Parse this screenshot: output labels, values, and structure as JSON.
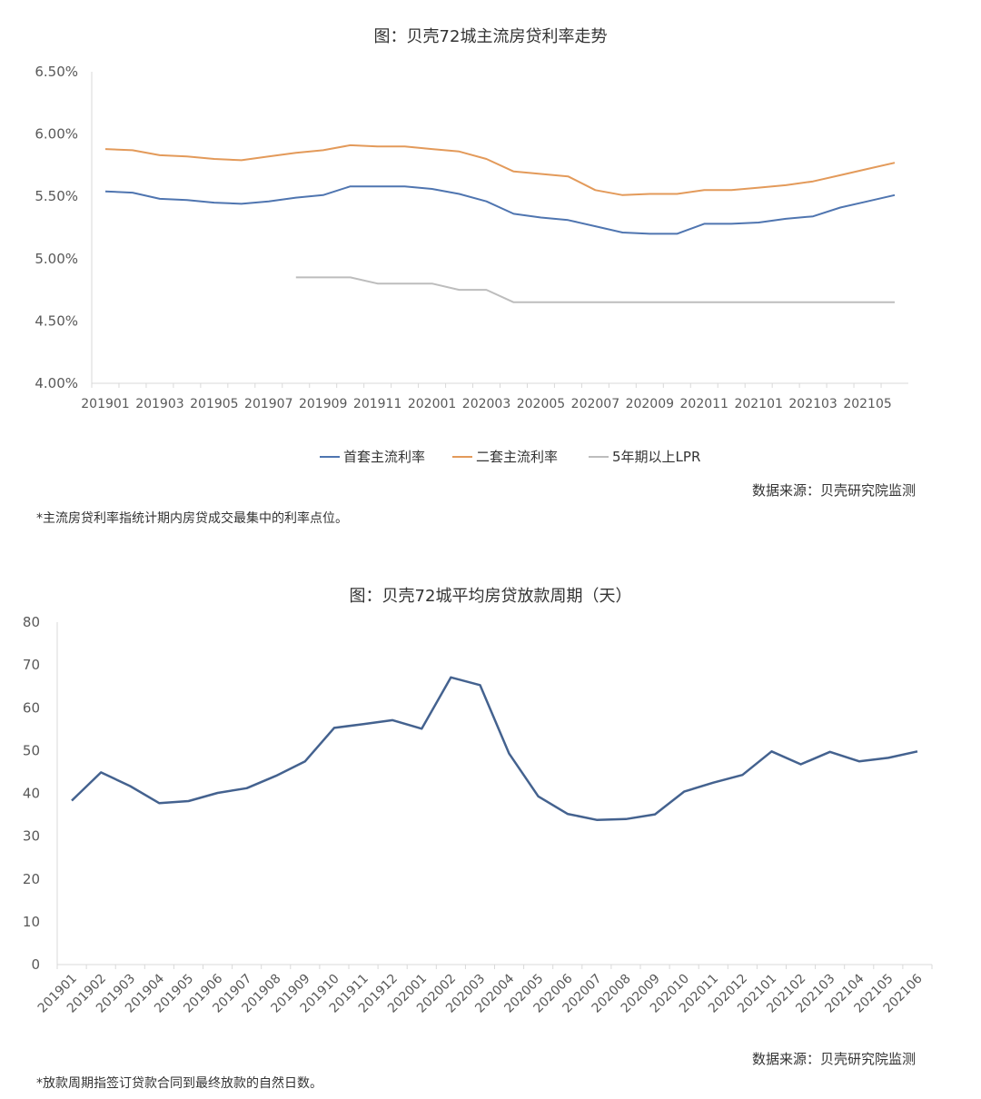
{
  "colors": {
    "first_home": "#4f75b0",
    "second_home": "#e39a5a",
    "lpr": "#bdbdbd",
    "cycle": "#44628f",
    "axis": "#d9d9d9"
  },
  "chart_data": [
    {
      "type": "line",
      "title": "图：贝壳72城主流房贷利率走势",
      "x": [
        "201901",
        "201902",
        "201903",
        "201904",
        "201905",
        "201906",
        "201907",
        "201908",
        "201909",
        "201910",
        "201911",
        "201912",
        "202001",
        "202002",
        "202003",
        "202004",
        "202005",
        "202006",
        "202007",
        "202008",
        "202009",
        "202010",
        "202011",
        "202012",
        "202101",
        "202102",
        "202103",
        "202104",
        "202105",
        "202106"
      ],
      "x_tick_labels": [
        "201901",
        "201903",
        "201905",
        "201907",
        "201909",
        "201911",
        "202001",
        "202003",
        "202005",
        "202007",
        "202009",
        "202011",
        "202101",
        "202103",
        "202105"
      ],
      "y_tick_labels": [
        "6.50%",
        "6.00%",
        "5.50%",
        "5.00%",
        "4.50%",
        "4.00%"
      ],
      "ylim": [
        4.0,
        6.5
      ],
      "y_unit": "%",
      "series": [
        {
          "name": "首套主流利率",
          "values": [
            5.54,
            5.53,
            5.48,
            5.47,
            5.45,
            5.44,
            5.46,
            5.49,
            5.51,
            5.58,
            5.58,
            5.58,
            5.56,
            5.52,
            5.46,
            5.36,
            5.33,
            5.31,
            5.26,
            5.21,
            5.2,
            5.2,
            5.28,
            5.28,
            5.29,
            5.32,
            5.34,
            5.41,
            5.46,
            5.51
          ]
        },
        {
          "name": "二套主流利率",
          "values": [
            5.88,
            5.87,
            5.83,
            5.82,
            5.8,
            5.79,
            5.82,
            5.85,
            5.87,
            5.91,
            5.9,
            5.9,
            5.88,
            5.86,
            5.8,
            5.7,
            5.68,
            5.66,
            5.55,
            5.51,
            5.52,
            5.52,
            5.55,
            5.55,
            5.57,
            5.59,
            5.62,
            5.67,
            5.72,
            5.77
          ]
        },
        {
          "name": "5年期以上LPR",
          "values": [
            null,
            null,
            null,
            null,
            null,
            null,
            null,
            4.85,
            4.85,
            4.85,
            4.8,
            4.8,
            4.8,
            4.75,
            4.75,
            4.65,
            4.65,
            4.65,
            4.65,
            4.65,
            4.65,
            4.65,
            4.65,
            4.65,
            4.65,
            4.65,
            4.65,
            4.65,
            4.65,
            4.65
          ]
        }
      ],
      "legend_position": "bottom",
      "grid": false,
      "source": "数据来源：贝壳研究院监测",
      "note": "*主流房贷利率指统计期内房贷成交最集中的利率点位。"
    },
    {
      "type": "line",
      "title": "图：贝壳72城平均房贷放款周期（天）",
      "x": [
        "201901",
        "201902",
        "201903",
        "201904",
        "201905",
        "201906",
        "201907",
        "201908",
        "201909",
        "201910",
        "201911",
        "201912",
        "202001",
        "202002",
        "202003",
        "202004",
        "202005",
        "202006",
        "202007",
        "202008",
        "202009",
        "202010",
        "202011",
        "202012",
        "202101",
        "202102",
        "202103",
        "202104",
        "202105",
        "202106"
      ],
      "y_tick_labels": [
        "80",
        "70",
        "60",
        "50",
        "40",
        "30",
        "20",
        "10",
        "0"
      ],
      "ylim": [
        0,
        80
      ],
      "series": [
        {
          "values": [
            38.3,
            44.9,
            41.7,
            37.7,
            38.2,
            40.1,
            41.2,
            44.1,
            47.5,
            55.3,
            56.2,
            57.1,
            55.1,
            67.1,
            65.3,
            49.3,
            39.3,
            35.2,
            33.8,
            34.0,
            35.1,
            40.4,
            42.5,
            44.3,
            49.8,
            46.8,
            49.7,
            47.5,
            48.3,
            49.8
          ]
        }
      ],
      "grid": false,
      "source": "数据来源：贝壳研究院监测",
      "note": "*放款周期指签订贷款合同到最终放款的自然日数。"
    }
  ]
}
